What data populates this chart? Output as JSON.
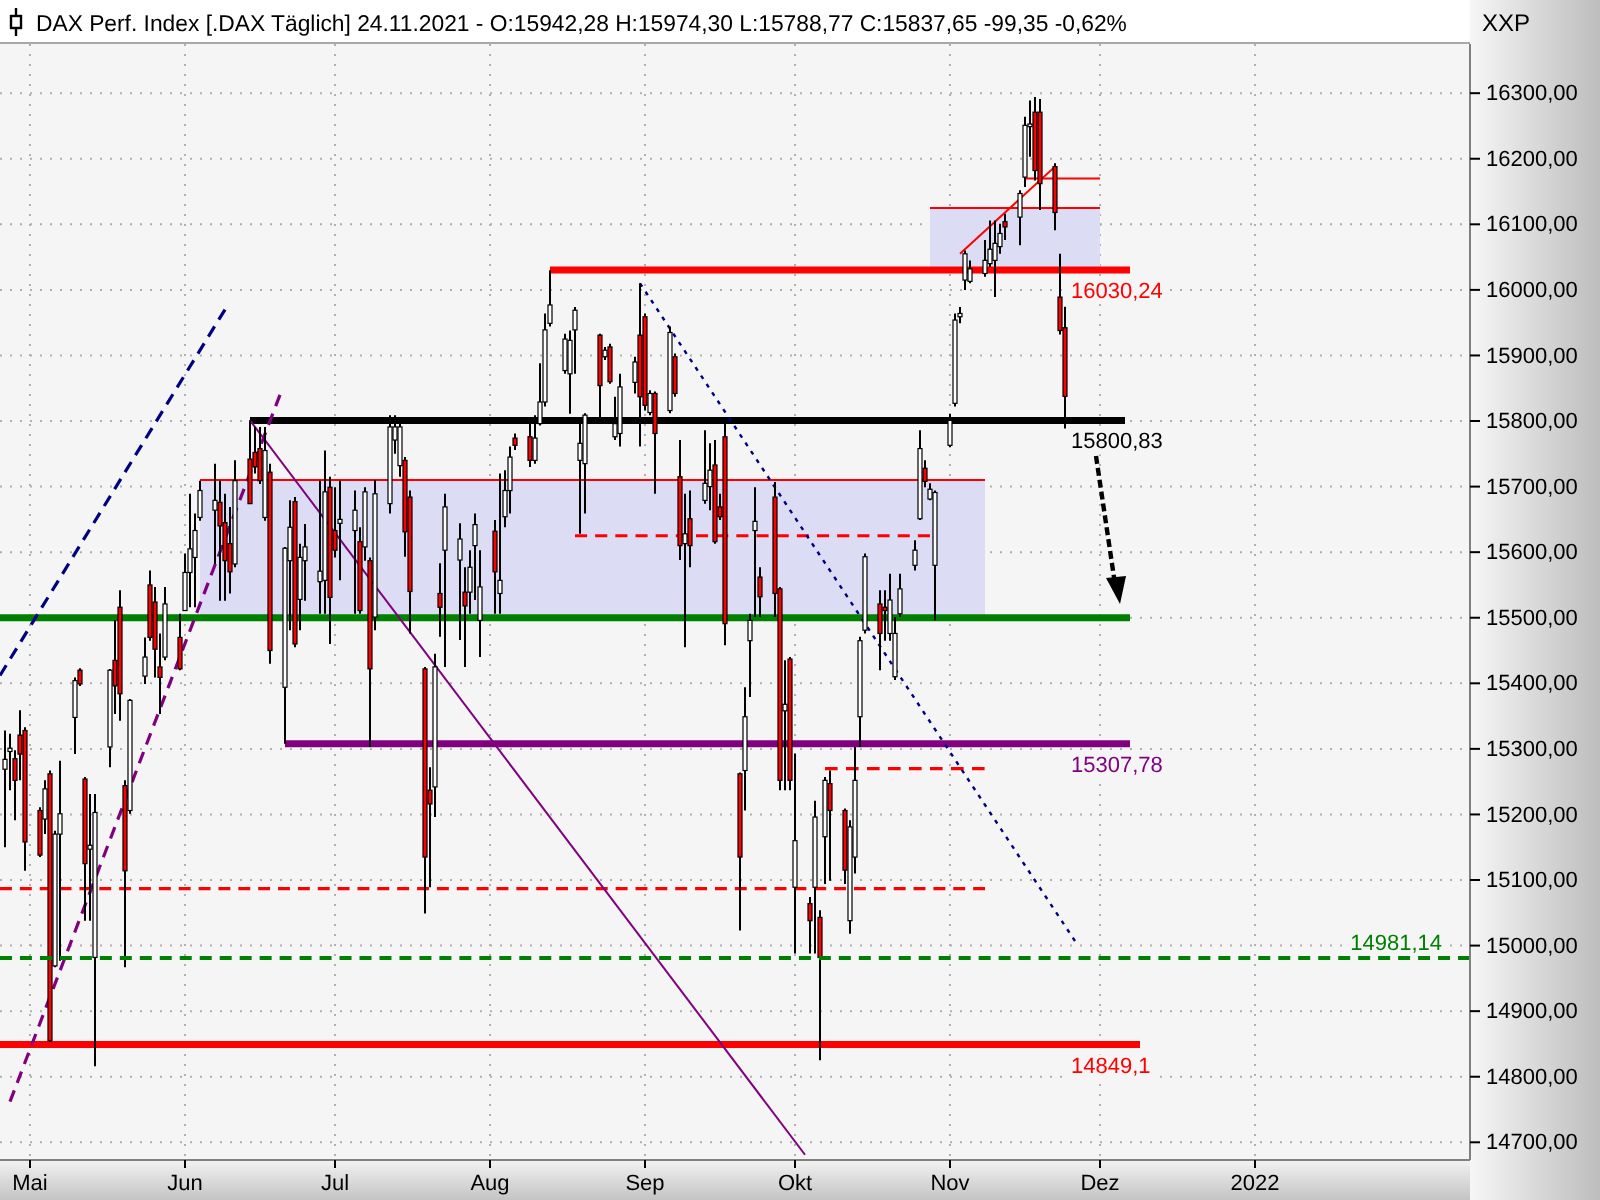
{
  "chart_data": {
    "type": "candlestick",
    "title": "DAX Perf. Index [.DAX Täglich] 24.11.2021 - O:15942,28 H:15974,30 L:15788,77 C:15837,65 -99,35 -0,62%",
    "ylabel": "XXP",
    "x": [
      "2021-04-26",
      "2021-04-27",
      "2021-04-28",
      "2021-04-29",
      "2021-04-30",
      "2021-05-03",
      "2021-05-04",
      "2021-05-05",
      "2021-05-06",
      "2021-05-07",
      "2021-05-10",
      "2021-05-11",
      "2021-05-12",
      "2021-05-13",
      "2021-05-14",
      "2021-05-17",
      "2021-05-18",
      "2021-05-19",
      "2021-05-20",
      "2021-05-21",
      "2021-05-24",
      "2021-05-25",
      "2021-05-26",
      "2021-05-27",
      "2021-05-28",
      "2021-05-31",
      "2021-06-01",
      "2021-06-02",
      "2021-06-03",
      "2021-06-04",
      "2021-06-07",
      "2021-06-08",
      "2021-06-09",
      "2021-06-10",
      "2021-06-11",
      "2021-06-14",
      "2021-06-15",
      "2021-06-16",
      "2021-06-17",
      "2021-06-18",
      "2021-06-21",
      "2021-06-22",
      "2021-06-23",
      "2021-06-24",
      "2021-06-25",
      "2021-06-28",
      "2021-06-29",
      "2021-06-30",
      "2021-07-01",
      "2021-07-02",
      "2021-07-05",
      "2021-07-06",
      "2021-07-07",
      "2021-07-08",
      "2021-07-09",
      "2021-07-12",
      "2021-07-13",
      "2021-07-14",
      "2021-07-15",
      "2021-07-16",
      "2021-07-19",
      "2021-07-20",
      "2021-07-21",
      "2021-07-22",
      "2021-07-23",
      "2021-07-26",
      "2021-07-27",
      "2021-07-28",
      "2021-07-29",
      "2021-07-30",
      "2021-08-02",
      "2021-08-03",
      "2021-08-04",
      "2021-08-05",
      "2021-08-06",
      "2021-08-09",
      "2021-08-10",
      "2021-08-11",
      "2021-08-12",
      "2021-08-13",
      "2021-08-16",
      "2021-08-17",
      "2021-08-18",
      "2021-08-19",
      "2021-08-20",
      "2021-08-23",
      "2021-08-24",
      "2021-08-25",
      "2021-08-26",
      "2021-08-27",
      "2021-08-30",
      "2021-08-31",
      "2021-09-01",
      "2021-09-02",
      "2021-09-03",
      "2021-09-06",
      "2021-09-07",
      "2021-09-08",
      "2021-09-09",
      "2021-09-10",
      "2021-09-13",
      "2021-09-14",
      "2021-09-15",
      "2021-09-16",
      "2021-09-17",
      "2021-09-20",
      "2021-09-21",
      "2021-09-22",
      "2021-09-23",
      "2021-09-24",
      "2021-09-27",
      "2021-09-28",
      "2021-09-29",
      "2021-09-30",
      "2021-10-01",
      "2021-10-04",
      "2021-10-05",
      "2021-10-06",
      "2021-10-07",
      "2021-10-08",
      "2021-10-11",
      "2021-10-12",
      "2021-10-13",
      "2021-10-14",
      "2021-10-15",
      "2021-10-18",
      "2021-10-19",
      "2021-10-20",
      "2021-10-21",
      "2021-10-22",
      "2021-10-25",
      "2021-10-26",
      "2021-10-27",
      "2021-10-28",
      "2021-10-29",
      "2021-11-01",
      "2021-11-02",
      "2021-11-03",
      "2021-11-04",
      "2021-11-05",
      "2021-11-08",
      "2021-11-09",
      "2021-11-10",
      "2021-11-11",
      "2021-11-12",
      "2021-11-15",
      "2021-11-16",
      "2021-11-17",
      "2021-11-18",
      "2021-11-19",
      "2021-11-22",
      "2021-11-23",
      "2021-11-24"
    ],
    "ohlc": [
      [
        15269,
        15328,
        15150,
        15284
      ],
      [
        15296,
        15323,
        15237,
        15301
      ],
      [
        15285,
        15298,
        15191,
        15252
      ],
      [
        15321,
        15359,
        15252,
        15292
      ],
      [
        15328,
        15333,
        15114,
        15158
      ],
      [
        15206,
        15211,
        15135,
        15138
      ],
      [
        15193,
        15252,
        15170,
        15239
      ],
      [
        15262,
        15267,
        14853,
        14855
      ],
      [
        14969,
        15175,
        14967,
        15170
      ],
      [
        15170,
        15282,
        14977,
        15201
      ],
      [
        15348,
        15409,
        15292,
        15404
      ],
      [
        15420,
        15423,
        15396,
        15399
      ],
      [
        15254,
        15257,
        15038,
        15125
      ],
      [
        15147,
        15231,
        15038,
        15153
      ],
      [
        14982,
        15231,
        14816,
        15203
      ],
      [
        15303,
        15422,
        15272,
        15420
      ],
      [
        15435,
        15496,
        15353,
        15396
      ],
      [
        15516,
        15542,
        15343,
        15384
      ],
      [
        15244,
        15252,
        14967,
        15114
      ],
      [
        15206,
        15376,
        15201,
        15374
      ],
      [
        15411,
        15470,
        15399,
        15440
      ],
      [
        15550,
        15572,
        15465,
        15470
      ],
      [
        15524,
        15547,
        15409,
        15452
      ],
      [
        15425,
        15476,
        15353,
        15409
      ],
      [
        15440,
        15547,
        15435,
        15521
      ],
      [
        15470,
        15506,
        15420,
        15422
      ],
      [
        15511,
        15598,
        15511,
        15569
      ],
      [
        15569,
        15689,
        15516,
        15605
      ],
      [
        15592,
        15659,
        15516,
        15633
      ],
      [
        15653,
        15709,
        15648,
        15694
      ],
      [
        15664,
        15735,
        15582,
        15679
      ],
      [
        15676,
        15709,
        15526,
        15640
      ],
      [
        15645,
        15689,
        15526,
        15587
      ],
      [
        15613,
        15669,
        15537,
        15570
      ],
      [
        15582,
        15740,
        15577,
        15709
      ],
      [
        15742,
        15801,
        15674,
        15674
      ],
      [
        15752,
        15791,
        15720,
        15730
      ],
      [
        15758,
        15791,
        15704,
        15709
      ],
      [
        15653,
        15791,
        15648,
        15755
      ],
      [
        15722,
        15735,
        15430,
        15450
      ],
      [
        15394,
        15608,
        15308,
        15606
      ],
      [
        15587,
        15679,
        15481,
        15638
      ],
      [
        15677,
        15684,
        15455,
        15460
      ],
      [
        15528,
        15613,
        15481,
        15592
      ],
      [
        15587,
        15643,
        15526,
        15608
      ],
      [
        15555,
        15709,
        15506,
        15571
      ],
      [
        15557,
        15755,
        15506,
        15692
      ],
      [
        15699,
        15715,
        15460,
        15531
      ],
      [
        15633,
        15699,
        15592,
        15603
      ],
      [
        15644,
        15709,
        15557,
        15650
      ],
      [
        15633,
        15694,
        15506,
        15664
      ],
      [
        15616,
        15638,
        15506,
        15511
      ],
      [
        15608,
        15699,
        15587,
        15692
      ],
      [
        15587,
        15592,
        15303,
        15422
      ],
      [
        15501,
        15710,
        15481,
        15689
      ],
      [
        15674,
        15809,
        15659,
        15791
      ],
      [
        15771,
        15809,
        15750,
        15791
      ],
      [
        15732,
        15805,
        15715,
        15791
      ],
      [
        15740,
        15745,
        15593,
        15631
      ],
      [
        15684,
        15694,
        15476,
        15540
      ],
      [
        15422,
        15425,
        15049,
        15135
      ],
      [
        15237,
        15272,
        15089,
        15216
      ],
      [
        15242,
        15445,
        15196,
        15425
      ],
      [
        15537,
        15583,
        15471,
        15516
      ],
      [
        15603,
        15689,
        15425,
        15669
      ],
      [
        15588,
        15644,
        15466,
        15620
      ],
      [
        15539,
        15577,
        15425,
        15518
      ],
      [
        15539,
        15603,
        15506,
        15577
      ],
      [
        15610,
        15659,
        15527,
        15642
      ],
      [
        15496,
        15603,
        15440,
        15547
      ],
      [
        15632,
        15649,
        15506,
        15570
      ],
      [
        15537,
        15720,
        15506,
        15557
      ],
      [
        15654,
        15725,
        15638,
        15694
      ],
      [
        15694,
        15761,
        15659,
        15745
      ],
      [
        15774,
        15781,
        15756,
        15763
      ],
      [
        15776,
        15801,
        15730,
        15740
      ],
      [
        15740,
        15809,
        15735,
        15774
      ],
      [
        15796,
        15888,
        15793,
        15829
      ],
      [
        15829,
        15964,
        15822,
        15939
      ],
      [
        15949,
        16030,
        15944,
        15977
      ],
      [
        15877,
        15933,
        15872,
        15925
      ],
      [
        15872,
        15938,
        15811,
        15923
      ],
      [
        15939,
        15974,
        15872,
        15969
      ],
      [
        15740,
        15801,
        15628,
        15766
      ],
      [
        15735,
        15812,
        15659,
        15809
      ],
      [
        15931,
        15933,
        15806,
        15854
      ],
      [
        15898,
        15913,
        15893,
        15908
      ],
      [
        15913,
        15918,
        15857,
        15860
      ],
      [
        15776,
        15837,
        15771,
        15796
      ],
      [
        15781,
        15872,
        15761,
        15852
      ],
      [
        15859,
        15898,
        15842,
        15890
      ],
      [
        15931,
        16010,
        15761,
        15837
      ],
      [
        15959,
        15964,
        15816,
        15824
      ],
      [
        15813,
        15847,
        15809,
        15842
      ],
      [
        15842,
        15845,
        15689,
        15781
      ],
      [
        15816,
        15944,
        15812,
        15935
      ],
      [
        15898,
        15903,
        15837,
        15842
      ],
      [
        15715,
        15771,
        15588,
        15610
      ],
      [
        15613,
        15689,
        15455,
        15628
      ],
      [
        15651,
        15694,
        15577,
        15610
      ],
      [
        15679,
        15786,
        15674,
        15705
      ],
      [
        15700,
        15766,
        15664,
        15725
      ],
      [
        15733,
        15771,
        15613,
        15616
      ],
      [
        15669,
        15689,
        15649,
        15654
      ],
      [
        15776,
        15796,
        15458,
        15491
      ],
      [
        15262,
        15264,
        15023,
        15135
      ],
      [
        15267,
        15394,
        15206,
        15349
      ],
      [
        15465,
        15506,
        15379,
        15496
      ],
      [
        15633,
        15699,
        15501,
        15647
      ],
      [
        15562,
        15577,
        15501,
        15532
      ],
      [
        15684,
        15707,
        15501,
        15537
      ],
      [
        15544,
        15547,
        15237,
        15252
      ],
      [
        15358,
        15435,
        15237,
        15368
      ],
      [
        15437,
        15440,
        15237,
        15252
      ],
      [
        15089,
        15293,
        14988,
        15160
      ],
      [
        15064,
        15074,
        14988,
        15038
      ],
      [
        15089,
        15221,
        14988,
        15196
      ],
      [
        15043,
        15054,
        14825,
        14982
      ],
      [
        15166,
        15257,
        15094,
        15252
      ],
      [
        15247,
        15267,
        15099,
        15206
      ],
      [
        15206,
        15209,
        15094,
        15115
      ],
      [
        15038,
        15191,
        15018,
        15181
      ],
      [
        15135,
        15303,
        15110,
        15252
      ],
      [
        15349,
        15471,
        15303,
        15465
      ],
      [
        15481,
        15598,
        15476,
        15593
      ],
      [
        15521,
        15542,
        15420,
        15476
      ],
      [
        15516,
        15542,
        15465,
        15511
      ],
      [
        15476,
        15567,
        15465,
        15527
      ],
      [
        15410,
        15501,
        15405,
        15476
      ],
      [
        15506,
        15567,
        15501,
        15544
      ],
      [
        15580,
        15618,
        15572,
        15603
      ],
      [
        15651,
        15786,
        15649,
        15758
      ],
      [
        15728,
        15740,
        15699,
        15708
      ],
      [
        15681,
        15705,
        15679,
        15696
      ],
      [
        15580,
        15694,
        15496,
        15691
      ],
      [
        15763,
        15811,
        15760,
        15801
      ],
      [
        15827,
        15964,
        15822,
        15954
      ],
      [
        15959,
        15974,
        15949,
        15964
      ],
      [
        16015,
        16060,
        16000,
        16055
      ],
      [
        16013,
        16045,
        16010,
        16032
      ],
      [
        16025,
        16076,
        16020,
        16045
      ],
      [
        16040,
        16106,
        16035,
        16062
      ],
      [
        16045,
        16106,
        15989,
        16071
      ],
      [
        16066,
        16101,
        16055,
        16086
      ],
      [
        16104,
        16116,
        16076,
        16096
      ],
      [
        16111,
        16152,
        16068,
        16147
      ],
      [
        16172,
        16264,
        16157,
        16251
      ],
      [
        16249,
        16289,
        16203,
        16253
      ],
      [
        16271,
        16294,
        16167,
        16182
      ],
      [
        16271,
        16291,
        16122,
        16162
      ],
      [
        16188,
        16193,
        16091,
        16118
      ],
      [
        15989,
        16055,
        15932,
        15938
      ],
      [
        15942.28,
        15974.3,
        15788.77,
        15837.65
      ]
    ],
    "series": [
      {
        "type": "line",
        "x": [
          "2021-06-04",
          "2021-11-08"
        ],
        "values": [
          15710,
          15710
        ],
        "lower": [
          15500,
          15500
        ],
        "upper": [
          15710,
          15710
        ],
        "color": "#ff0000"
      },
      {
        "type": "line",
        "x": [
          "2021-10-28",
          "2021-12-01"
        ],
        "values": [
          16125,
          16125
        ],
        "lower": [
          16030.24,
          16030.24
        ],
        "upper": [
          16125,
          16125
        ],
        "color": "#ff0000"
      },
      {
        "type": "line",
        "x": [
          "2021-04-25",
          "2021-12-07"
        ],
        "values": [
          15500,
          15500
        ],
        "color": "#008000"
      },
      {
        "type": "line",
        "x": [
          "2021-08-13",
          "2021-12-07"
        ],
        "values": [
          16030.24,
          16030.24
        ],
        "color": "#ff0000",
        "value_labels": [
          null,
          "16030,24"
        ]
      },
      {
        "type": "line",
        "x": [
          "2021-06-14",
          "2021-12-06"
        ],
        "values": [
          15800.83,
          15800.83
        ],
        "color": "#000000",
        "value_labels": [
          null,
          "15800,83"
        ]
      },
      {
        "type": "line",
        "x": [
          "2021-06-21",
          "2021-12-07"
        ],
        "values": [
          15307.78,
          15307.78
        ],
        "color": "#800080",
        "value_labels": [
          null,
          "15307,78"
        ]
      },
      {
        "type": "line",
        "x": [
          "2021-04-25",
          "2021-12-09"
        ],
        "values": [
          14849.1,
          14849.1
        ],
        "color": "#ff0000",
        "value_labels": [
          null,
          "14849,1"
        ]
      },
      {
        "type": "line",
        "x": [
          "2021-04-25",
          "2021-11-08"
        ],
        "values": [
          15087,
          15087
        ],
        "color": "#ff0000",
        "line_style": "dashed"
      },
      {
        "type": "line",
        "x": [
          "2021-08-18",
          "2021-10-28"
        ],
        "values": [
          15625,
          15625
        ],
        "color": "#ff0000",
        "line_style": "dashed"
      },
      {
        "type": "line",
        "x": [
          "2021-10-07",
          "2021-11-08"
        ],
        "values": [
          15270,
          15270
        ],
        "color": "#ff0000",
        "line_style": "dashed"
      },
      {
        "type": "line",
        "x": [
          "2021-11-16",
          "2021-12-01"
        ],
        "values": [
          16170,
          16170
        ],
        "color": "#ff0000"
      },
      {
        "type": "line",
        "x": [
          "2021-11-03",
          "2021-11-22"
        ],
        "values": [
          16055,
          16188
        ],
        "color": "#ff0000"
      },
      {
        "type": "line",
        "x": [
          "2021-04-25",
          "2021-06-09"
        ],
        "values": [
          15412,
          15970
        ],
        "color": "#000080",
        "line_style": "dashed"
      },
      {
        "type": "line",
        "x": [
          "2021-04-27",
          "2021-06-20"
        ],
        "values": [
          14762,
          15840
        ],
        "color": "#800080",
        "line_style": "dashed"
      },
      {
        "type": "line",
        "x": [
          "2021-06-14",
          "2021-10-03"
        ],
        "values": [
          15801,
          14681
        ],
        "color": "#800080"
      },
      {
        "type": "line",
        "x": [
          "2021-08-31",
          "2021-11-26"
        ],
        "values": [
          16010,
          15007
        ],
        "color": "#000080",
        "line_style": "dotted"
      }
    ],
    "xlim": [
      "2021-04-25",
      "2022-02-13"
    ],
    "xticks": [
      {
        "value": "2021-05-01",
        "label": "Mai"
      },
      {
        "value": "2021-06-01",
        "label": "Jun"
      },
      {
        "value": "2021-07-01",
        "label": "Jul"
      },
      {
        "value": "2021-08-01",
        "label": "Aug"
      },
      {
        "value": "2021-09-01",
        "label": "Sep"
      },
      {
        "value": "2021-10-01",
        "label": "Okt"
      },
      {
        "value": "2021-11-01",
        "label": "Nov"
      },
      {
        "value": "2021-12-01",
        "label": "Dez"
      },
      {
        "value": "2022-01-01",
        "label": "2022"
      }
    ],
    "ylim": [
      14673,
      16375
    ],
    "yticks": [
      {
        "value": 14700,
        "label": "14700,00"
      },
      {
        "value": 14800,
        "label": "14800,00"
      },
      {
        "value": 14900,
        "label": "14900,00"
      },
      {
        "value": 15000,
        "label": "15000,00"
      },
      {
        "value": 15100,
        "label": "15100,00"
      },
      {
        "value": 15200,
        "label": "15200,00"
      },
      {
        "value": 15300,
        "label": "15300,00"
      },
      {
        "value": 15400,
        "label": "15400,00"
      },
      {
        "value": 15500,
        "label": "15500,00"
      },
      {
        "value": 15600,
        "label": "15600,00"
      },
      {
        "value": 15700,
        "label": "15700,00"
      },
      {
        "value": 15800,
        "label": "15800,00"
      },
      {
        "value": 15900,
        "label": "15900,00"
      },
      {
        "value": 16000,
        "label": "16000,00"
      },
      {
        "value": 16100,
        "label": "16100,00"
      },
      {
        "value": 16200,
        "label": "16200,00"
      },
      {
        "value": 16300,
        "label": "16300,00"
      }
    ],
    "grid": true,
    "ref_lines": [
      {
        "axis": "y",
        "value": 14981.14,
        "label": "14981,14",
        "color": "#008000",
        "line_style": "dashed"
      }
    ]
  }
}
